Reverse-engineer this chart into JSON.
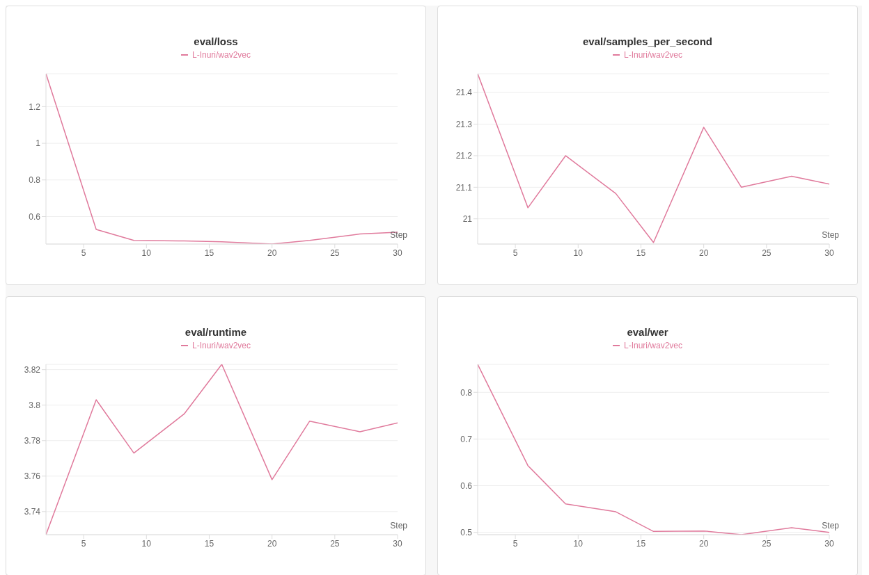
{
  "chart_data": [
    {
      "type": "line",
      "title": "eval/loss",
      "xlabel": "Step",
      "x": [
        2,
        6,
        9,
        13,
        16,
        20,
        23,
        27,
        30
      ],
      "series": [
        {
          "name": "L-Inuri/wav2vec",
          "color": "#e07a9c",
          "values": [
            1.38,
            0.53,
            0.47,
            0.467,
            0.462,
            0.45,
            0.47,
            0.505,
            0.515
          ]
        }
      ],
      "xlim": [
        2,
        30
      ],
      "xticks": [
        5,
        10,
        15,
        20,
        25,
        30
      ],
      "ylim": [
        0.45,
        1.38
      ],
      "yticks": [
        0.6,
        0.8,
        1,
        1.2
      ],
      "grid": "y",
      "legend": "top",
      "marker": "none",
      "line_style": "solid"
    },
    {
      "type": "line",
      "title": "eval/samples_per_second",
      "xlabel": "Step",
      "x": [
        2,
        6,
        9,
        13,
        16,
        20,
        23,
        27,
        30
      ],
      "series": [
        {
          "name": "L-Inuri/wav2vec",
          "color": "#e07a9c",
          "values": [
            21.46,
            21.035,
            21.2,
            21.08,
            20.925,
            21.29,
            21.1,
            21.135,
            21.11
          ]
        }
      ],
      "xlim": [
        2,
        30
      ],
      "xticks": [
        5,
        10,
        15,
        20,
        25,
        30
      ],
      "ylim": [
        20.92,
        21.46
      ],
      "yticks": [
        21,
        21.1,
        21.2,
        21.3,
        21.4
      ],
      "grid": "y",
      "legend": "top",
      "marker": "none",
      "line_style": "solid"
    },
    {
      "type": "line",
      "title": "eval/runtime",
      "xlabel": "Step",
      "x": [
        2,
        6,
        9,
        13,
        16,
        20,
        23,
        27,
        30
      ],
      "series": [
        {
          "name": "L-Inuri/wav2vec",
          "color": "#e07a9c",
          "values": [
            3.727,
            3.803,
            3.773,
            3.795,
            3.823,
            3.758,
            3.791,
            3.785,
            3.79
          ]
        }
      ],
      "xlim": [
        2,
        30
      ],
      "xticks": [
        5,
        10,
        15,
        20,
        25,
        30
      ],
      "ylim": [
        3.727,
        3.823
      ],
      "yticks": [
        3.74,
        3.76,
        3.78,
        3.8,
        3.82
      ],
      "grid": "y",
      "legend": "top",
      "marker": "none",
      "line_style": "solid"
    },
    {
      "type": "line",
      "title": "eval/wer",
      "xlabel": "Step",
      "x": [
        2,
        6,
        9,
        13,
        16,
        20,
        23,
        27,
        30
      ],
      "series": [
        {
          "name": "L-Inuri/wav2vec",
          "color": "#e07a9c",
          "values": [
            0.86,
            0.643,
            0.561,
            0.544,
            0.502,
            0.503,
            0.495,
            0.51,
            0.5
          ]
        }
      ],
      "xlim": [
        2,
        30
      ],
      "xticks": [
        5,
        10,
        15,
        20,
        25,
        30
      ],
      "ylim": [
        0.495,
        0.86
      ],
      "yticks": [
        0.5,
        0.6,
        0.7,
        0.8
      ],
      "grid": "y",
      "legend": "top",
      "marker": "none",
      "line_style": "solid"
    }
  ]
}
